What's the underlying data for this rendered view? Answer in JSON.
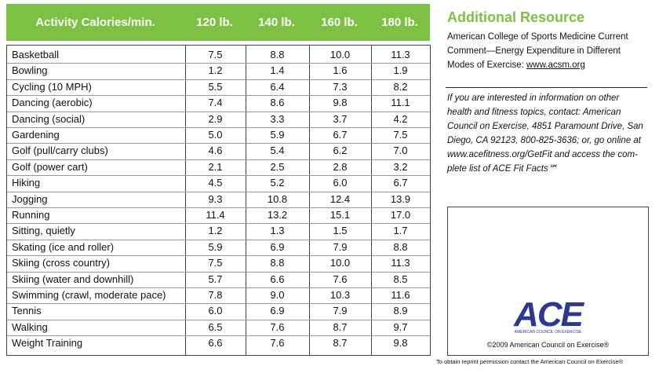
{
  "table": {
    "header": [
      "Activity Calories/min.",
      "120 lb.",
      "140 lb.",
      "160 lb.",
      "180 lb."
    ],
    "rows": [
      [
        "Basketball",
        "7.5",
        "8.8",
        "10.0",
        "11.3"
      ],
      [
        "Bowling",
        "1.2",
        "1.4",
        "1.6",
        "1.9"
      ],
      [
        "Cycling (10 MPH)",
        "5.5",
        "6.4",
        "7.3",
        "8.2"
      ],
      [
        "Dancing (aerobic)",
        "7.4",
        "8.6",
        "9.8",
        "11.1"
      ],
      [
        "Dancing (social)",
        "2.9",
        "3.3",
        "3.7",
        "4.2"
      ],
      [
        "Gardening",
        "5.0",
        "5.9",
        "6.7",
        "7.5"
      ],
      [
        "Golf (pull/carry clubs)",
        "4.6",
        "5.4",
        "6.2",
        "7.0"
      ],
      [
        "Golf (power cart)",
        "2.1",
        "2.5",
        "2.8",
        "3.2"
      ],
      [
        "Hiking",
        "4.5",
        "5.2",
        "6.0",
        "6.7"
      ],
      [
        "Jogging",
        "9.3",
        "10.8",
        "12.4",
        "13.9"
      ],
      [
        "Running",
        "11.4",
        "13.2",
        "15.1",
        "17.0"
      ],
      [
        "Sitting, quietly",
        "1.2",
        "1.3",
        "1.5",
        "1.7"
      ],
      [
        "Skating (ice and roller)",
        "5.9",
        "6.9",
        "7.9",
        "8.8"
      ],
      [
        "Skiing (cross country)",
        "7.5",
        "8.8",
        "10.0",
        "11.3"
      ],
      [
        "Skiing (water and downhill)",
        "5.7",
        "6.6",
        "7.6",
        "8.5"
      ],
      [
        "Swimming (crawl, moderate pace)",
        "7.8",
        "9.0",
        "10.3",
        "11.6"
      ],
      [
        "Tennis",
        "6.0",
        "6.9",
        "7.9",
        "8.9"
      ],
      [
        "Walking",
        "6.5",
        "7.6",
        "8.7",
        "9.7"
      ],
      [
        "Weight Training",
        "6.6",
        "7.6",
        "8.7",
        "9.8"
      ]
    ]
  },
  "resource": {
    "title": "Additional Resource",
    "lines": [
      "American College of Sports Medicine Current",
      "Comment—Energy Expenditure in Different",
      "Modes of Exercise:"
    ],
    "link": "www.acsm.org",
    "contact": [
      "If you are interested in information on other",
      "health and fitness topics, contact: American",
      "Council on Exercise, 4851 Paramount Drive, San",
      "Diego, CA 92123, 800-825-3636; or, go online at",
      "www.acefitness.org/GetFit and access the com-",
      "plete list of ACE Fit Facts℠"
    ]
  },
  "logo": {
    "mark": "ACE",
    "tagline": "AMERICAN COUNCIL ON EXERCISE",
    "copyright": "©2009 American Council on Exercise®"
  },
  "footer": "To obtain reprint permission contact the American Council on Exercise®"
}
